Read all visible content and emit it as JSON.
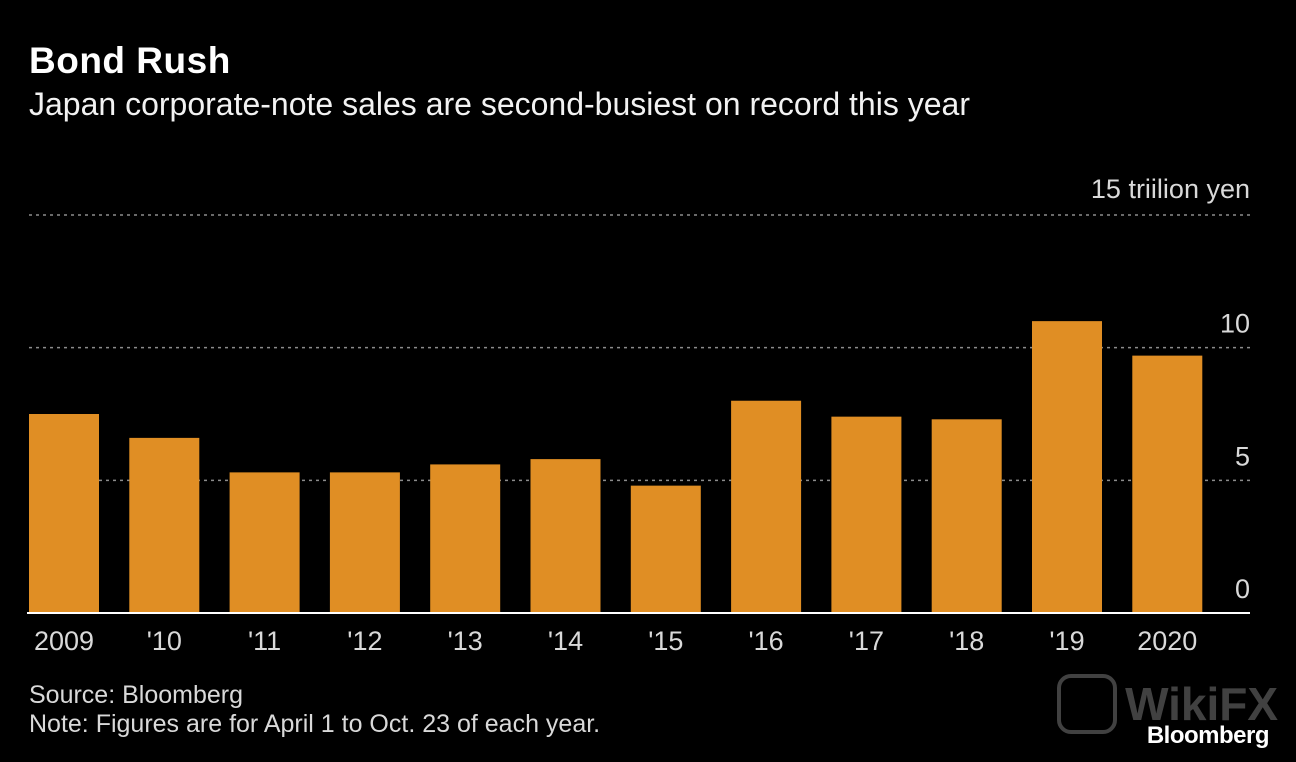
{
  "header": {
    "title": "Bond Rush",
    "subtitle": "Japan corporate-note sales are second-busiest on record this year"
  },
  "footer": {
    "source": "Source: Bloomberg",
    "note": "Note: Figures are for April 1 to Oct. 23 of each year.",
    "logo": "Bloomberg",
    "watermark": "WikiFX"
  },
  "chart_data": {
    "type": "bar",
    "categories": [
      "2009",
      "'10",
      "'11",
      "'12",
      "'13",
      "'14",
      "'15",
      "'16",
      "'17",
      "'18",
      "'19",
      "2020"
    ],
    "values": [
      7.5,
      6.6,
      5.3,
      5.3,
      5.6,
      5.8,
      4.8,
      8.0,
      7.4,
      7.3,
      11.0,
      9.7
    ],
    "ylim": [
      0,
      15
    ],
    "yticks": [
      0,
      5,
      10,
      15
    ],
    "ytick_labels": [
      "0",
      "5",
      "10",
      "15"
    ],
    "y_unit": "triilion yen",
    "title": "Bond Rush",
    "subtitle": "Japan corporate-note sales are second-busiest on record this year",
    "xlabel": "",
    "ylabel": "",
    "grid": true,
    "bar_color": "#e08e24",
    "grid_color": "#8c8c8c",
    "axis_color": "#ffffff"
  }
}
